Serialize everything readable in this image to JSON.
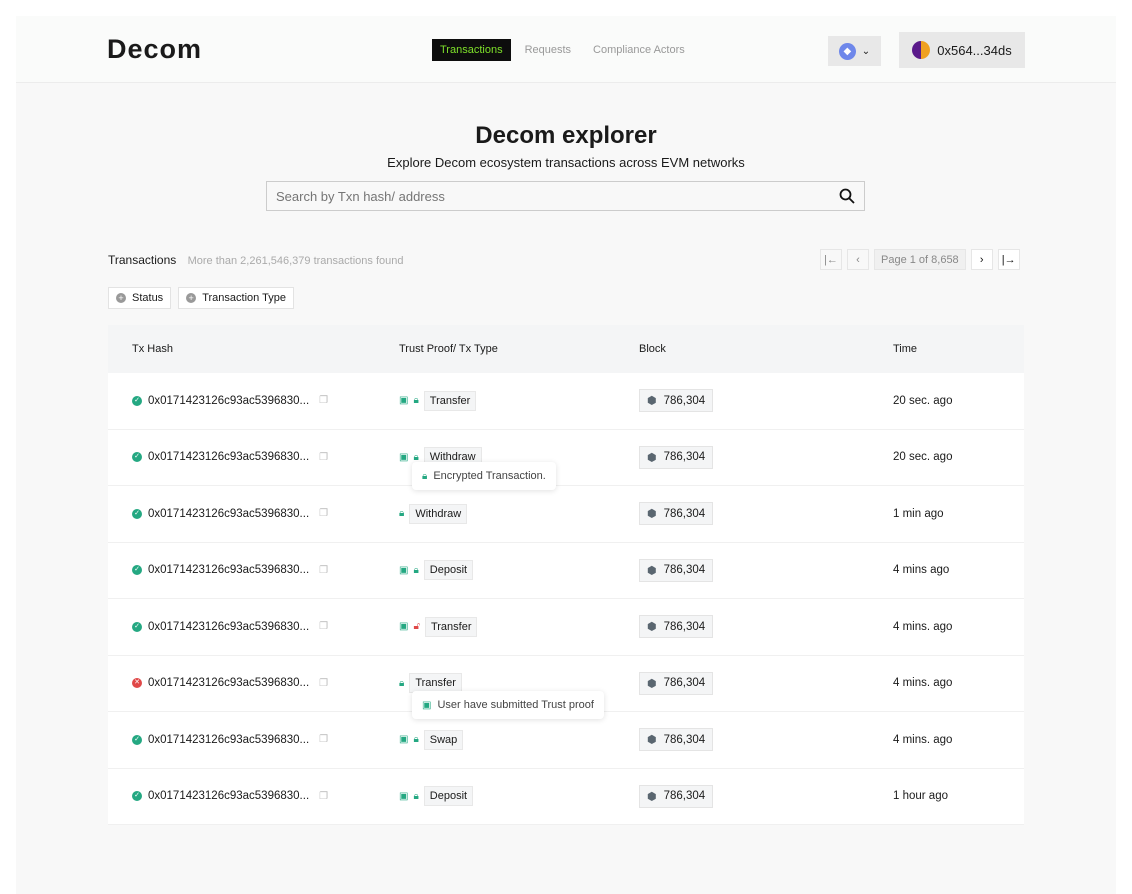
{
  "header": {
    "logo": "Decom",
    "nav": [
      {
        "label": "Transactions",
        "active": true
      },
      {
        "label": "Requests"
      },
      {
        "label": "Compliance Actors"
      }
    ],
    "network_icon": "ethereum-icon",
    "wallet": "0x564...34ds"
  },
  "hero": {
    "title": "Decom explorer",
    "subtitle": "Explore Decom ecosystem transactions across EVM networks",
    "search_placeholder": "Search by Txn hash/ address"
  },
  "transactions": {
    "title": "Transactions",
    "count_text": "More than 2,261,546,379 transactions found",
    "page_text": "Page 1 of  8,658",
    "filters": [
      "Status",
      "Transaction Type"
    ],
    "columns": [
      "Tx Hash",
      "Trust Proof/ Tx Type",
      "Block",
      "Time"
    ],
    "rows": [
      {
        "status": "success",
        "hash": "0x0171423126c93ac5396830...",
        "proof": true,
        "lock": "locked",
        "type": "Transfer",
        "block": "786,304",
        "time": "20 sec. ago"
      },
      {
        "status": "success",
        "hash": "0x0171423126c93ac5396830...",
        "proof": true,
        "lock": "locked",
        "type": "Withdraw",
        "block": "786,304",
        "time": "20 sec. ago"
      },
      {
        "status": "success",
        "hash": "0x0171423126c93ac5396830...",
        "proof": false,
        "lock": "locked",
        "type": "Withdraw",
        "block": "786,304",
        "time": "1 min ago"
      },
      {
        "status": "success",
        "hash": "0x0171423126c93ac5396830...",
        "proof": true,
        "lock": "locked",
        "type": "Deposit",
        "block": "786,304",
        "time": "4 mins ago"
      },
      {
        "status": "success",
        "hash": "0x0171423126c93ac5396830...",
        "proof": true,
        "lock": "unlocked",
        "type": "Transfer",
        "block": "786,304",
        "time": "4 mins. ago"
      },
      {
        "status": "failed",
        "hash": "0x0171423126c93ac5396830...",
        "proof": false,
        "lock": "locked",
        "type": "Transfer",
        "block": "786,304",
        "time": "4 mins. ago"
      },
      {
        "status": "success",
        "hash": "0x0171423126c93ac5396830...",
        "proof": true,
        "lock": "locked",
        "type": "Swap",
        "block": "786,304",
        "time": "4 mins. ago"
      },
      {
        "status": "success",
        "hash": "0x0171423126c93ac5396830...",
        "proof": true,
        "lock": "locked",
        "type": "Deposit",
        "block": "786,304",
        "time": "1 hour ago"
      }
    ]
  },
  "tooltips": {
    "encrypted": "Encrypted Transaction.",
    "trust_proof": "User have submitted Trust proof"
  },
  "colors": {
    "accent": "#7ee02a",
    "success": "#24a882",
    "error": "#e04848"
  }
}
